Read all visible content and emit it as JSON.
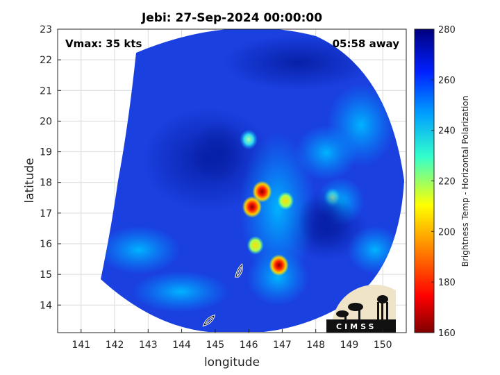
{
  "figure": {
    "title": "Jebi: 27-Sep-2024 00:00:00",
    "vmax_label": "Vmax: 35 kts",
    "time_away_label": "05:58 away"
  },
  "map": {
    "xlabel": "longitude",
    "ylabel": "latitude",
    "xlim": [
      140.3,
      150.7
    ],
    "ylim": [
      13.1,
      23
    ],
    "xticks": [
      "141",
      "142",
      "143",
      "144",
      "145",
      "146",
      "147",
      "148",
      "149",
      "150"
    ],
    "yticks": [
      "14",
      "15",
      "16",
      "17",
      "18",
      "19",
      "20",
      "21",
      "22",
      "23"
    ],
    "grid": true,
    "background_color": "#1a40e0"
  },
  "colorbar": {
    "label": "Brightness Temp - Horizontal Polarization",
    "ticks": [
      "280",
      "260",
      "240",
      "220",
      "200",
      "180",
      "160"
    ],
    "range": [
      160,
      280
    ],
    "colors": [
      "#7f0000",
      "#ff0000",
      "#ff9900",
      "#ffff00",
      "#33ffcc",
      "#00a0ff",
      "#0020ff",
      "#00007f"
    ]
  },
  "logo": {
    "text": "CIMSS"
  },
  "chart_data": {
    "type": "heatmap",
    "title": "Jebi: 27-Sep-2024 00:00:00",
    "xlabel": "longitude",
    "ylabel": "latitude",
    "xlim": [
      140.3,
      150.7
    ],
    "ylim": [
      13.1,
      23
    ],
    "colorbar_label": "Brightness Temp - Horizontal Polarization",
    "value_range": [
      160,
      280
    ],
    "features": [
      {
        "lon": 146.4,
        "lat": 17.7,
        "value": 168
      },
      {
        "lon": 146.1,
        "lat": 17.2,
        "value": 175
      },
      {
        "lon": 146.9,
        "lat": 15.3,
        "value": 178
      },
      {
        "lon": 146.2,
        "lat": 15.95,
        "value": 200
      },
      {
        "lon": 147.1,
        "lat": 17.4,
        "value": 205
      },
      {
        "lon": 146.0,
        "lat": 19.4,
        "value": 225
      },
      {
        "lon": 148.5,
        "lat": 17.5,
        "value": 215
      },
      {
        "lon": 145.1,
        "lat": 19.0,
        "value": 270
      },
      {
        "lon": 148.3,
        "lat": 16.8,
        "value": 268
      }
    ]
  }
}
